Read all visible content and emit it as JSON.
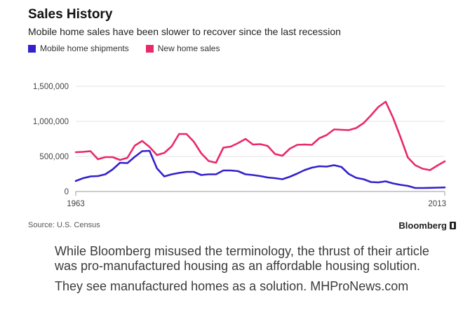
{
  "chart_data": {
    "type": "line",
    "title": "Sales History",
    "subtitle": "Mobile home sales have been slower to recover since the last recession",
    "xlabel": "",
    "ylabel": "",
    "xlim": [
      1963,
      2013
    ],
    "ylim": [
      0,
      1500000
    ],
    "x_tick_labels": [
      "1963",
      "2013"
    ],
    "y_tick_labels": [
      "0",
      "500,000",
      "1,000,000",
      "1,500,000"
    ],
    "grid": true,
    "legend": "top-left",
    "x": [
      1963,
      1964,
      1965,
      1966,
      1967,
      1968,
      1969,
      1970,
      1971,
      1972,
      1973,
      1974,
      1975,
      1976,
      1977,
      1978,
      1979,
      1980,
      1981,
      1982,
      1983,
      1984,
      1985,
      1986,
      1987,
      1988,
      1989,
      1990,
      1991,
      1992,
      1993,
      1994,
      1995,
      1996,
      1997,
      1998,
      1999,
      2000,
      2001,
      2002,
      2003,
      2004,
      2005,
      2006,
      2007,
      2008,
      2009,
      2010,
      2011,
      2012,
      2013
    ],
    "series": [
      {
        "name": "Mobile home shipments",
        "color": "#3322cc",
        "values": [
          150000,
          190000,
          215000,
          220000,
          245000,
          315000,
          410000,
          405000,
          495000,
          575000,
          580000,
          330000,
          215000,
          245000,
          265000,
          280000,
          280000,
          235000,
          245000,
          245000,
          300000,
          300000,
          290000,
          245000,
          235000,
          220000,
          200000,
          190000,
          175000,
          210000,
          255000,
          305000,
          340000,
          360000,
          355000,
          375000,
          350000,
          250000,
          195000,
          175000,
          135000,
          130000,
          145000,
          115000,
          95000,
          80000,
          50000,
          50000,
          52000,
          55000,
          58000
        ]
      },
      {
        "name": "New home sales",
        "color": "#e8296b",
        "values": [
          560000,
          565000,
          575000,
          460000,
          490000,
          490000,
          450000,
          480000,
          655000,
          720000,
          635000,
          520000,
          550000,
          645000,
          820000,
          820000,
          710000,
          545000,
          435000,
          410000,
          625000,
          640000,
          690000,
          750000,
          670000,
          675000,
          650000,
          535000,
          510000,
          610000,
          665000,
          670000,
          665000,
          760000,
          805000,
          885000,
          880000,
          875000,
          905000,
          975000,
          1085000,
          1205000,
          1280000,
          1050000,
          775000,
          485000,
          375000,
          325000,
          305000,
          370000,
          430000
        ]
      }
    ],
    "source": "Source: U.S. Census",
    "brand": "Bloomberg"
  },
  "caption": {
    "line1": "While Bloomberg misused the terminology, the thrust of their article was pro-manufactured housing as an affordable housing solution.",
    "line2": "They see manufactured homes as a solution.  MHProNews.com"
  }
}
